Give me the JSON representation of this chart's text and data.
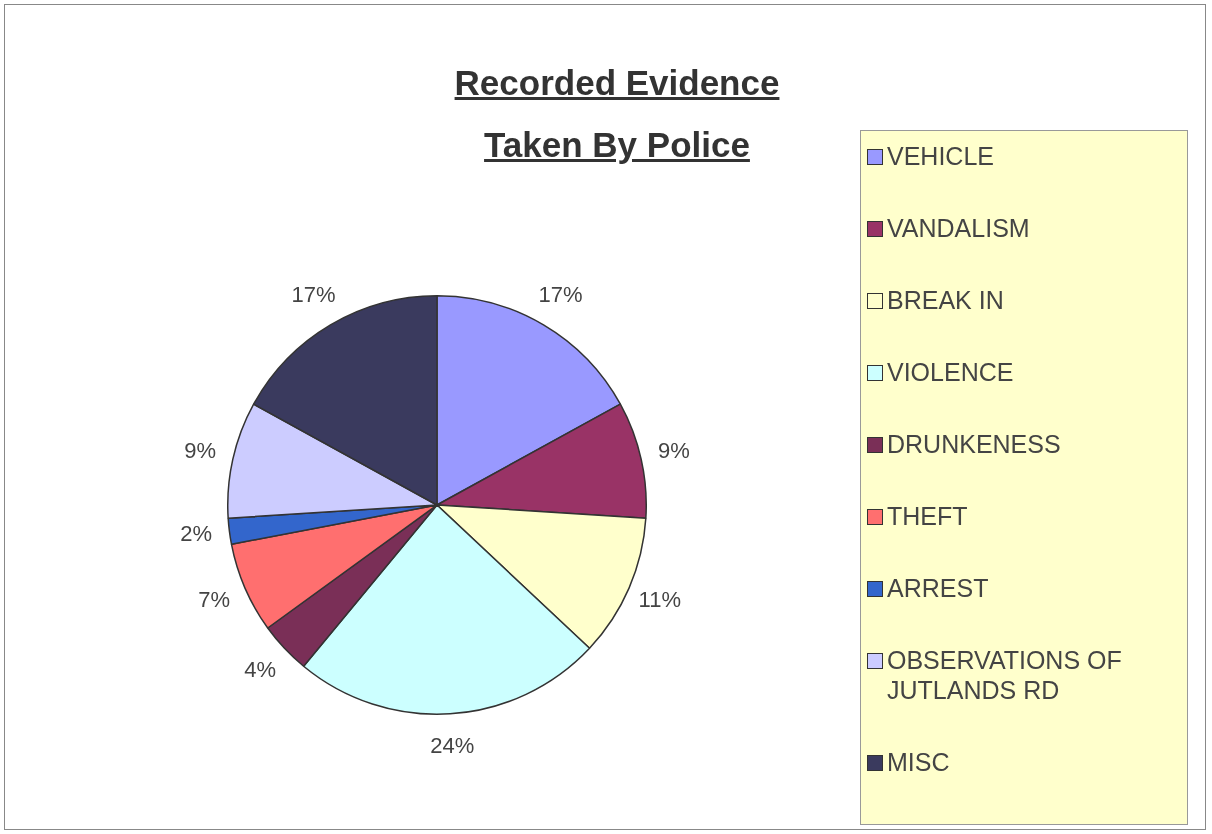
{
  "chart_data": {
    "type": "pie",
    "title": "Recorded Evidence\nTaken By Police",
    "categories": [
      "VEHICLE",
      "VANDALISM",
      "BREAK IN",
      "VIOLENCE",
      "DRUNKENESS",
      "THEFT",
      "ARREST",
      "OBSERVATIONS OF JUTLANDS RD",
      "MISC"
    ],
    "values": [
      17,
      9,
      11,
      24,
      4,
      7,
      2,
      9,
      17
    ],
    "value_labels": [
      "17%",
      "9%",
      "11%",
      "24%",
      "4%",
      "7%",
      "2%",
      "9%",
      "17%"
    ],
    "colors": [
      "#9999ff",
      "#993366",
      "#ffffcc",
      "#ccffff",
      "#7a2f57",
      "#ff6f6f",
      "#3366cc",
      "#ccccff",
      "#3a3a5e"
    ],
    "legend": "right"
  }
}
